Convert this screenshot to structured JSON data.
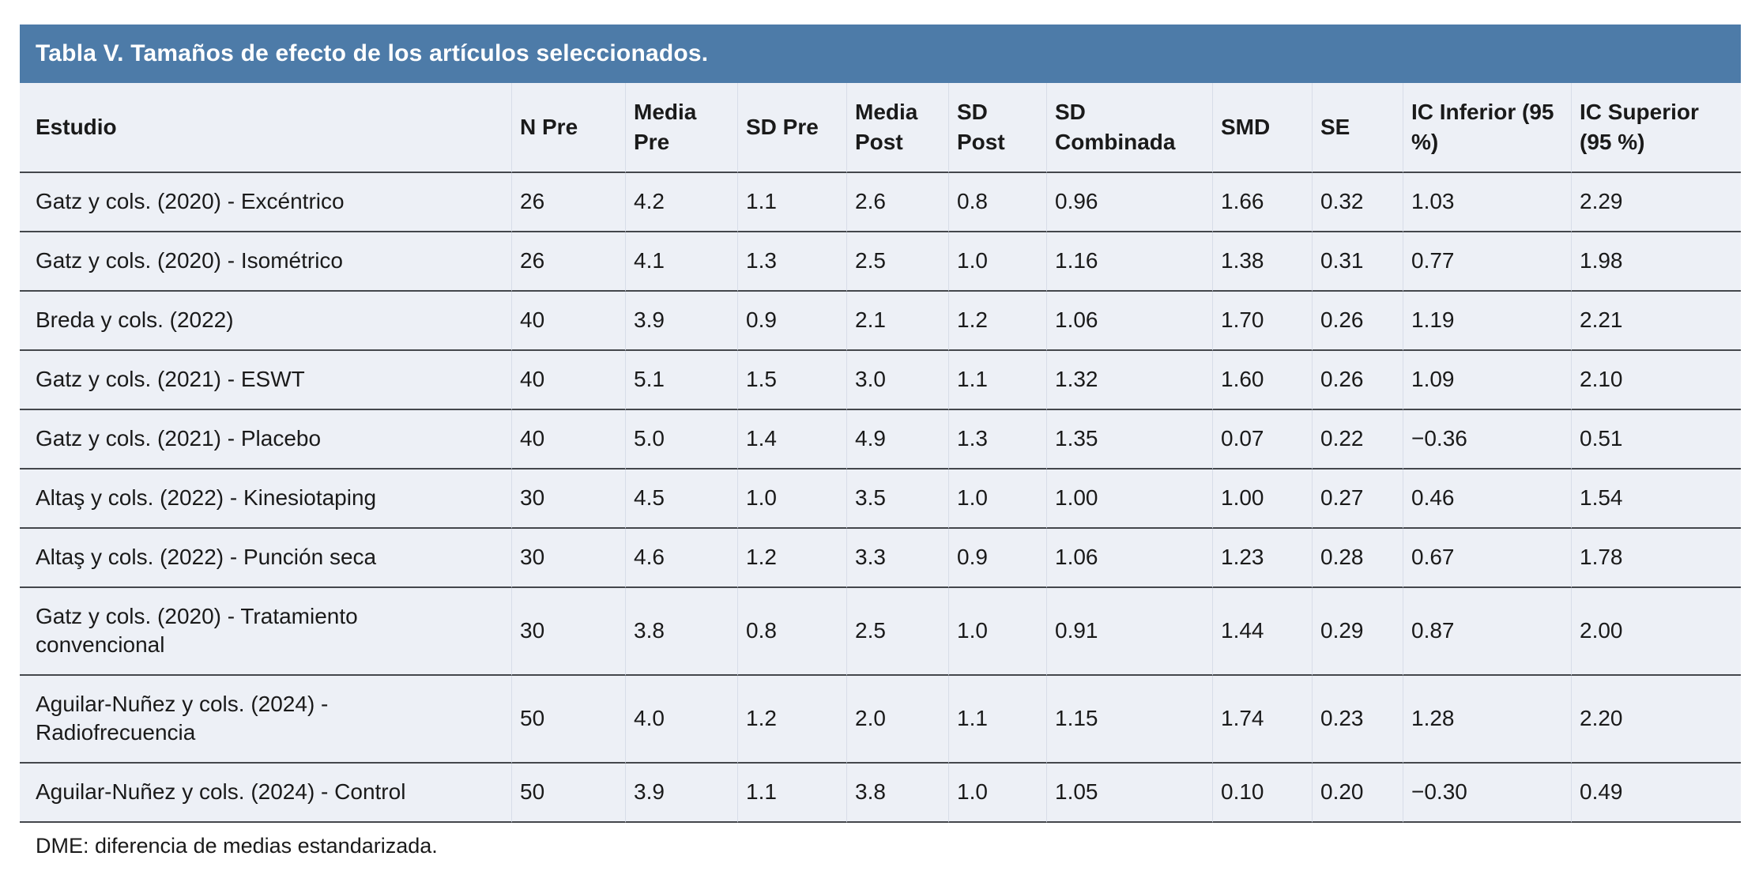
{
  "title": "Tabla V. Tamaños de efecto de los artículos seleccionados.",
  "footnote": "DME: diferencia de medias estandarizada.",
  "colors": {
    "title_bar_bg": "#4d7ba8",
    "title_text": "#ffffff",
    "table_bg": "#edf0f6",
    "row_rule": "#44474c",
    "column_divider": "#d8dde8",
    "text": "#1a1a1a"
  },
  "table": {
    "columns": [
      "Estudio",
      "N Pre",
      "Media Pre",
      "SD Pre",
      "Media Post",
      "SD Post",
      "SD Combinada",
      "SMD",
      "SE",
      "IC Inferior (95 %)",
      "IC Superior (95 %)"
    ],
    "rows": [
      [
        "Gatz y cols. (2020) - Excéntrico",
        "26",
        "4.2",
        "1.1",
        "2.6",
        "0.8",
        "0.96",
        "1.66",
        "0.32",
        "1.03",
        "2.29"
      ],
      [
        "Gatz y cols. (2020) - Isométrico",
        "26",
        "4.1",
        "1.3",
        "2.5",
        "1.0",
        "1.16",
        "1.38",
        "0.31",
        "0.77",
        "1.98"
      ],
      [
        "Breda y cols. (2022)",
        "40",
        "3.9",
        "0.9",
        "2.1",
        "1.2",
        "1.06",
        "1.70",
        "0.26",
        "1.19",
        "2.21"
      ],
      [
        "Gatz y cols. (2021) - ESWT",
        "40",
        "5.1",
        "1.5",
        "3.0",
        "1.1",
        "1.32",
        "1.60",
        "0.26",
        "1.09",
        "2.10"
      ],
      [
        "Gatz y cols. (2021) - Placebo",
        "40",
        "5.0",
        "1.4",
        "4.9",
        "1.3",
        "1.35",
        "0.07",
        "0.22",
        "−0.36",
        "0.51"
      ],
      [
        "Altaş y cols. (2022) - Kinesiotaping",
        "30",
        "4.5",
        "1.0",
        "3.5",
        "1.0",
        "1.00",
        "1.00",
        "0.27",
        "0.46",
        "1.54"
      ],
      [
        "Altaş y cols. (2022) - Punción seca",
        "30",
        "4.6",
        "1.2",
        "3.3",
        "0.9",
        "1.06",
        "1.23",
        "0.28",
        "0.67",
        "1.78"
      ],
      [
        "Gatz y cols. (2020) - Tratamiento convencional",
        "30",
        "3.8",
        "0.8",
        "2.5",
        "1.0",
        "0.91",
        "1.44",
        "0.29",
        "0.87",
        "2.00"
      ],
      [
        "Aguilar-Nuñez y cols. (2024) - Radiofrecuencia",
        "50",
        "4.0",
        "1.2",
        "2.0",
        "1.1",
        "1.15",
        "1.74",
        "0.23",
        "1.28",
        "2.20"
      ],
      [
        "Aguilar-Nuñez y cols. (2024) - Control",
        "50",
        "3.9",
        "1.1",
        "3.8",
        "1.0",
        "1.05",
        "0.10",
        "0.20",
        "−0.30",
        "0.49"
      ]
    ]
  }
}
